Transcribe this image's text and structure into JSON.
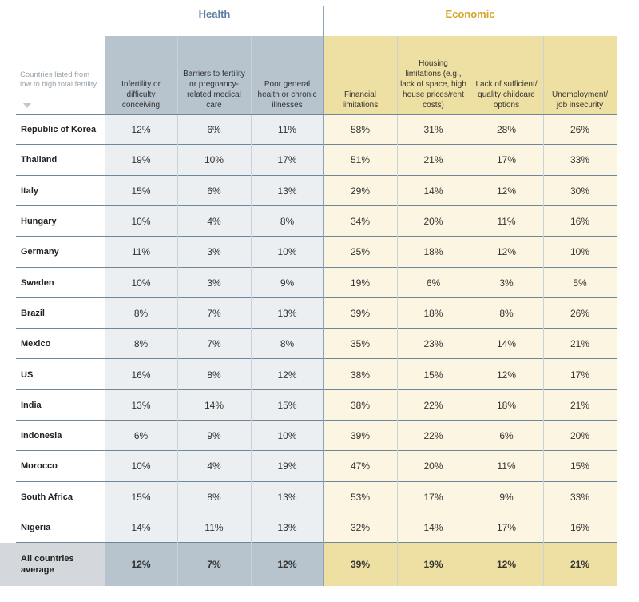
{
  "groups": {
    "health": "Health",
    "economic": "Economic"
  },
  "legend_note": "Countries listed from low to high total fertility",
  "colors": {
    "health_header": "#b7c3cd",
    "health_body": "#eceff2",
    "economic_header": "#eedfa3",
    "economic_body": "#fbf5e1",
    "health_title": "#5b7fa0",
    "economic_title": "#d4a62a",
    "average_label": "#d4d8dc"
  },
  "chart_data": {
    "type": "table",
    "columns": [
      {
        "group": "Health",
        "label": "Infertility or difficulty conceiving"
      },
      {
        "group": "Health",
        "label": "Barriers to fertility or pregnancy-related medical care"
      },
      {
        "group": "Health",
        "label": "Poor general health or chronic illnesses"
      },
      {
        "group": "Economic",
        "label": "Financial limitations"
      },
      {
        "group": "Economic",
        "label": "Housing limitations (e.g., lack of space, high house prices/rent costs)"
      },
      {
        "group": "Economic",
        "label": "Lack of sufficient/ quality childcare options"
      },
      {
        "group": "Economic",
        "label": "Unemployment/ job insecurity"
      }
    ],
    "rows": [
      {
        "country": "Republic of Korea",
        "values": [
          "12%",
          "6%",
          "11%",
          "58%",
          "31%",
          "28%",
          "26%"
        ]
      },
      {
        "country": "Thailand",
        "values": [
          "19%",
          "10%",
          "17%",
          "51%",
          "21%",
          "17%",
          "33%"
        ]
      },
      {
        "country": "Italy",
        "values": [
          "15%",
          "6%",
          "13%",
          "29%",
          "14%",
          "12%",
          "30%"
        ]
      },
      {
        "country": "Hungary",
        "values": [
          "10%",
          "4%",
          "8%",
          "34%",
          "20%",
          "11%",
          "16%"
        ]
      },
      {
        "country": "Germany",
        "values": [
          "11%",
          "3%",
          "10%",
          "25%",
          "18%",
          "12%",
          "10%"
        ]
      },
      {
        "country": "Sweden",
        "values": [
          "10%",
          "3%",
          "9%",
          "19%",
          "6%",
          "3%",
          "5%"
        ]
      },
      {
        "country": "Brazil",
        "values": [
          "8%",
          "7%",
          "13%",
          "39%",
          "18%",
          "8%",
          "26%"
        ]
      },
      {
        "country": "Mexico",
        "values": [
          "8%",
          "7%",
          "8%",
          "35%",
          "23%",
          "14%",
          "21%"
        ]
      },
      {
        "country": "US",
        "values": [
          "16%",
          "8%",
          "12%",
          "38%",
          "15%",
          "12%",
          "17%"
        ]
      },
      {
        "country": "India",
        "values": [
          "13%",
          "14%",
          "15%",
          "38%",
          "22%",
          "18%",
          "21%"
        ]
      },
      {
        "country": "Indonesia",
        "values": [
          "6%",
          "9%",
          "10%",
          "39%",
          "22%",
          "6%",
          "20%"
        ]
      },
      {
        "country": "Morocco",
        "values": [
          "10%",
          "4%",
          "19%",
          "47%",
          "20%",
          "11%",
          "15%"
        ]
      },
      {
        "country": "South Africa",
        "values": [
          "15%",
          "8%",
          "13%",
          "53%",
          "17%",
          "9%",
          "33%"
        ]
      },
      {
        "country": "Nigeria",
        "values": [
          "14%",
          "11%",
          "13%",
          "32%",
          "14%",
          "17%",
          "16%"
        ]
      }
    ],
    "average": {
      "country": "All countries average",
      "values": [
        "12%",
        "7%",
        "12%",
        "39%",
        "19%",
        "12%",
        "21%"
      ]
    }
  }
}
